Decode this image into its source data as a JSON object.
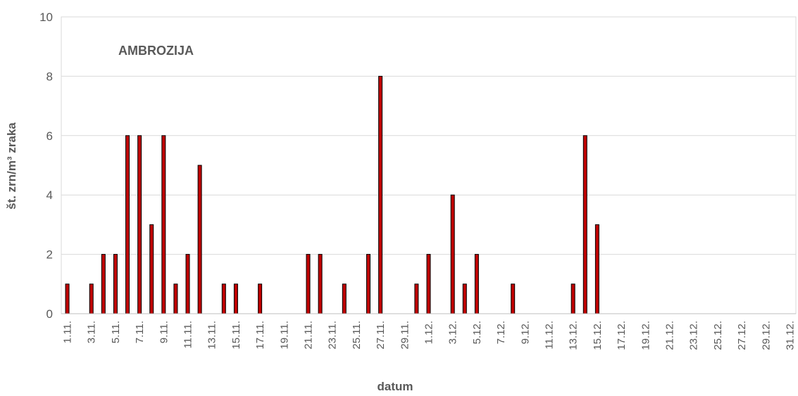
{
  "chart_data": {
    "type": "bar",
    "title": "",
    "annotation": "AMBROZIJA",
    "xlabel": "datum",
    "ylabel": "št. zrn/m³ zraka",
    "ylim": [
      0,
      10
    ],
    "yticks": [
      0,
      2,
      4,
      6,
      8,
      10
    ],
    "grid": true,
    "bar_color": "#C00000",
    "bar_edge_color": "#000000",
    "grid_color": "#D9D9D9",
    "tick_label_color": "#595959",
    "categories": [
      "1.11.",
      "2.11.",
      "3.11.",
      "4.11.",
      "5.11.",
      "6.11.",
      "7.11.",
      "8.11.",
      "9.11.",
      "10.11.",
      "11.11.",
      "12.11.",
      "13.11.",
      "14.11.",
      "15.11.",
      "16.11.",
      "17.11.",
      "18.11.",
      "19.11.",
      "20.11.",
      "21.11.",
      "22.11.",
      "23.11.",
      "24.11.",
      "25.11.",
      "26.11.",
      "27.11.",
      "28.11.",
      "29.11.",
      "30.11.",
      "1.12.",
      "2.12.",
      "3.12.",
      "4.12.",
      "5.12.",
      "6.12.",
      "7.12.",
      "8.12.",
      "9.12.",
      "10.12.",
      "11.12.",
      "12.12.",
      "13.12.",
      "14.12.",
      "15.12.",
      "16.12.",
      "17.12.",
      "18.12.",
      "19.12.",
      "20.12.",
      "21.12.",
      "22.12.",
      "23.12.",
      "24.12.",
      "25.12.",
      "26.12.",
      "27.12.",
      "28.12.",
      "29.12.",
      "30.12.",
      "31.12."
    ],
    "tick_labels_shown": [
      "1.11.",
      "3.11.",
      "5.11.",
      "7.11.",
      "9.11.",
      "11.11.",
      "13.11.",
      "15.11.",
      "17.11.",
      "19.11.",
      "21.11.",
      "23.11.",
      "25.11.",
      "27.11.",
      "29.11.",
      "1.12.",
      "3.12.",
      "5.12.",
      "7.12.",
      "9.12.",
      "11.12.",
      "13.12.",
      "15.12.",
      "17.12.",
      "19.12.",
      "21.12.",
      "23.12.",
      "25.12.",
      "27.12.",
      "29.12.",
      "31.12."
    ],
    "values": [
      1,
      0,
      1,
      2,
      2,
      6,
      6,
      3,
      6,
      1,
      2,
      5,
      0,
      1,
      1,
      0,
      1,
      0,
      0,
      0,
      2,
      2,
      0,
      1,
      0,
      2,
      8,
      0,
      0,
      1,
      2,
      0,
      4,
      1,
      2,
      0,
      0,
      1,
      0,
      0,
      0,
      0,
      1,
      6,
      3,
      0,
      0,
      0,
      0,
      0,
      0,
      0,
      0,
      0,
      0,
      0,
      0,
      0,
      0,
      0,
      0
    ]
  }
}
